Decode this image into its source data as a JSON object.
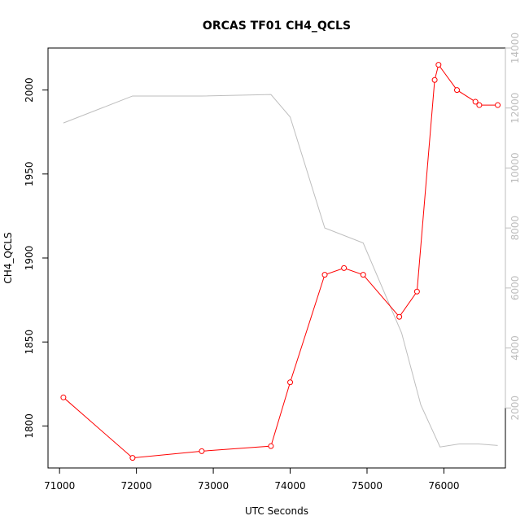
{
  "chart_data": {
    "type": "line",
    "title": "ORCAS TF01 CH4_QCLS",
    "xlabel": "UTC Seconds",
    "ylabel": "CH4_QCLS",
    "y2label": "",
    "xlim": [
      70850,
      76800
    ],
    "ylim": [
      1775,
      2025
    ],
    "y2lim": [
      0,
      14000
    ],
    "x_ticks": [
      71000,
      72000,
      73000,
      74000,
      75000,
      76000
    ],
    "y_ticks": [
      1800,
      1850,
      1900,
      1950,
      2000
    ],
    "y2_ticks": [
      2000,
      4000,
      6000,
      8000,
      10000,
      12000,
      14000
    ],
    "grid": false,
    "colors": {
      "ch4": "#ff0000",
      "altitude": "#bebebe",
      "axis": "#000000",
      "right_axis": "#bebebe"
    },
    "series": [
      {
        "axis": "left",
        "marker": "open-circle",
        "x": [
          71050,
          71950,
          72850,
          73750,
          74000,
          74450,
          74700,
          74950,
          75420,
          75650,
          75880,
          75930,
          76170,
          76410,
          76460,
          76700
        ],
        "y": [
          1817,
          1781,
          1785,
          1788,
          1826,
          1890,
          1894,
          1890,
          1865,
          1880,
          2006,
          2015,
          2000,
          1993,
          1991,
          1991
        ]
      },
      {
        "axis": "right",
        "marker": "none",
        "x": [
          71050,
          71950,
          72850,
          73750,
          74000,
          74450,
          74950,
          75450,
          75700,
          75950,
          76200,
          76450,
          76700
        ],
        "y": [
          11500,
          12400,
          12400,
          12450,
          11700,
          8000,
          7500,
          4500,
          2100,
          700,
          800,
          800,
          750
        ]
      }
    ]
  }
}
